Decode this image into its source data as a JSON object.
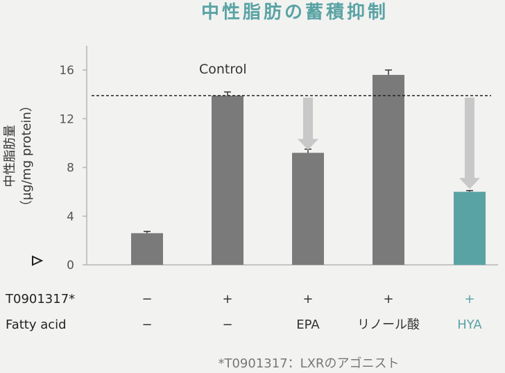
{
  "chart_data": {
    "type": "bar",
    "title": "中性脂肪の蓄積抑制",
    "ylabel": "中性脂肪量",
    "yunit": "（µg/mg protein）",
    "ylim": [
      0,
      16
    ],
    "yticks": [
      0,
      4,
      8,
      12,
      16
    ],
    "control_label": "Control",
    "control_value": 13.9,
    "values": [
      2.6,
      13.9,
      9.2,
      15.6,
      6.0
    ],
    "errors": [
      0.15,
      0.3,
      0.3,
      0.4,
      0.1
    ],
    "highlight_index": 4,
    "arrows_from_control_to": [
      2,
      4
    ],
    "colors": {
      "bar": "#7a7a7a",
      "highlight": "#5aa3a4",
      "arrow": "#c8c8c8",
      "axis": "#b5b5b5"
    },
    "rows": [
      {
        "label": "T0901317*",
        "values": [
          "−",
          "+",
          "+",
          "+",
          "+"
        ]
      },
      {
        "label": "Fatty acid",
        "values": [
          "−",
          "−",
          "EPA",
          "リノール酸",
          "HYA"
        ]
      }
    ],
    "footnote": "*T0901317：LXRのアゴニスト"
  }
}
